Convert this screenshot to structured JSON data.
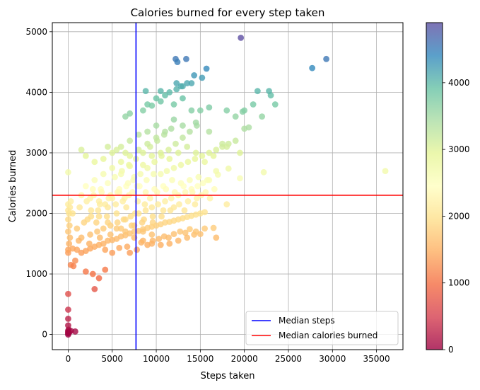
{
  "chart_data": {
    "type": "scatter",
    "title": "Calories burned for every step taken",
    "xlabel": "Steps taken",
    "ylabel": "Calories burned",
    "xlim": [
      -1800,
      38000
    ],
    "ylim": [
      -250,
      5150
    ],
    "xticks": [
      {
        "value": 0,
        "label": "0"
      },
      {
        "value": 5000,
        "label": "5000"
      },
      {
        "value": 10000,
        "label": "10000"
      },
      {
        "value": 15000,
        "label": "15000"
      },
      {
        "value": 20000,
        "label": "20000"
      },
      {
        "value": 25000,
        "label": "25000"
      },
      {
        "value": 30000,
        "label": "30000"
      },
      {
        "value": 35000,
        "label": "35000"
      }
    ],
    "yticks": [
      {
        "value": 0,
        "label": "0"
      },
      {
        "value": 1000,
        "label": "1000"
      },
      {
        "value": 2000,
        "label": "2000"
      },
      {
        "value": 3000,
        "label": "3000"
      },
      {
        "value": 4000,
        "label": "4000"
      },
      {
        "value": 5000,
        "label": "5000"
      }
    ],
    "grid": true,
    "colormap": "Spectral",
    "colormap_stops": [
      "#9e0142",
      "#d53e4f",
      "#f46d43",
      "#fdae61",
      "#fee08b",
      "#ffffbf",
      "#e6f598",
      "#abdda4",
      "#66c2a5",
      "#3288bd",
      "#5e4fa2"
    ],
    "colorbar": {
      "min": 0,
      "max": 4900,
      "ticks": [
        {
          "value": 0,
          "label": "0"
        },
        {
          "value": 1000,
          "label": "1000"
        },
        {
          "value": 2000,
          "label": "2000"
        },
        {
          "value": 3000,
          "label": "3000"
        },
        {
          "value": 4000,
          "label": "4000"
        }
      ]
    },
    "reference_lines": [
      {
        "orientation": "vertical",
        "value": 7700,
        "label": "Median steps",
        "color": "#0000ff"
      },
      {
        "orientation": "horizontal",
        "value": 2300,
        "label": "Median calories burned",
        "color": "#ff0000"
      }
    ],
    "legend_position": "lower right",
    "points": [
      [
        0,
        0
      ],
      [
        0,
        20
      ],
      [
        0,
        40
      ],
      [
        0,
        60
      ],
      [
        50,
        80
      ],
      [
        100,
        30
      ],
      [
        300,
        60
      ],
      [
        800,
        50
      ],
      [
        0,
        150
      ],
      [
        0,
        260
      ],
      [
        0,
        410
      ],
      [
        0,
        670
      ],
      [
        300,
        1150
      ],
      [
        600,
        1130
      ],
      [
        800,
        1220
      ],
      [
        2000,
        1040
      ],
      [
        2800,
        1000
      ],
      [
        3000,
        750
      ],
      [
        3500,
        930
      ],
      [
        4200,
        1070
      ],
      [
        0,
        1350
      ],
      [
        0,
        1400
      ],
      [
        100,
        1500
      ],
      [
        200,
        1600
      ],
      [
        0,
        1700
      ],
      [
        150,
        1800
      ],
      [
        0,
        1900
      ],
      [
        100,
        2000
      ],
      [
        0,
        2050
      ],
      [
        200,
        2100
      ],
      [
        0,
        2150
      ],
      [
        300,
        2200
      ],
      [
        0,
        2680
      ],
      [
        500,
        1420
      ],
      [
        1000,
        1400
      ],
      [
        1500,
        1350
      ],
      [
        2000,
        1380
      ],
      [
        2500,
        1420
      ],
      [
        3000,
        1450
      ],
      [
        3500,
        1480
      ],
      [
        4000,
        1500
      ],
      [
        4500,
        1550
      ],
      [
        5000,
        1560
      ],
      [
        5500,
        1580
      ],
      [
        6000,
        1620
      ],
      [
        6500,
        1640
      ],
      [
        7000,
        1670
      ],
      [
        7500,
        1700
      ],
      [
        8000,
        1710
      ],
      [
        8500,
        1740
      ],
      [
        9000,
        1760
      ],
      [
        9500,
        1780
      ],
      [
        10000,
        1800
      ],
      [
        10500,
        1820
      ],
      [
        11000,
        1850
      ],
      [
        11500,
        1860
      ],
      [
        12000,
        1880
      ],
      [
        12500,
        1900
      ],
      [
        13000,
        1920
      ],
      [
        13500,
        1940
      ],
      [
        14000,
        1960
      ],
      [
        14500,
        1980
      ],
      [
        15000,
        2000
      ],
      [
        15500,
        2020
      ],
      [
        4200,
        1400
      ],
      [
        5000,
        1350
      ],
      [
        5800,
        1430
      ],
      [
        6700,
        1450
      ],
      [
        7000,
        1350
      ],
      [
        7800,
        1400
      ],
      [
        8300,
        1520
      ],
      [
        9000,
        1480
      ],
      [
        9600,
        1550
      ],
      [
        10300,
        1580
      ],
      [
        10900,
        1620
      ],
      [
        11400,
        1600
      ],
      [
        12000,
        1660
      ],
      [
        12700,
        1700
      ],
      [
        13300,
        1680
      ],
      [
        13800,
        1740
      ],
      [
        14300,
        1650
      ],
      [
        15000,
        1660
      ],
      [
        16500,
        1760
      ],
      [
        1500,
        1600
      ],
      [
        2500,
        1650
      ],
      [
        3300,
        1700
      ],
      [
        4000,
        1750
      ],
      [
        4800,
        1800
      ],
      [
        5600,
        1850
      ],
      [
        6300,
        1900
      ],
      [
        7100,
        1950
      ],
      [
        8000,
        2000
      ],
      [
        8800,
        2050
      ],
      [
        9500,
        2100
      ],
      [
        10200,
        2150
      ],
      [
        11000,
        2200
      ],
      [
        11700,
        2250
      ],
      [
        12500,
        2300
      ],
      [
        13300,
        2350
      ],
      [
        14000,
        2400
      ],
      [
        14700,
        2450
      ],
      [
        15300,
        2500
      ],
      [
        16000,
        2550
      ],
      [
        1000,
        1750
      ],
      [
        1800,
        1850
      ],
      [
        2600,
        1950
      ],
      [
        3400,
        2050
      ],
      [
        4200,
        2150
      ],
      [
        5000,
        2250
      ],
      [
        5800,
        2350
      ],
      [
        6600,
        2450
      ],
      [
        7400,
        2550
      ],
      [
        8200,
        2650
      ],
      [
        9000,
        2750
      ],
      [
        9800,
        2850
      ],
      [
        10600,
        2950
      ],
      [
        11400,
        3050
      ],
      [
        12200,
        3150
      ],
      [
        13000,
        3250
      ],
      [
        13800,
        3350
      ],
      [
        14600,
        3450
      ],
      [
        500,
        2000
      ],
      [
        1300,
        2100
      ],
      [
        2100,
        2200
      ],
      [
        2900,
        2300
      ],
      [
        3700,
        2400
      ],
      [
        4500,
        2500
      ],
      [
        5300,
        2600
      ],
      [
        6100,
        2700
      ],
      [
        6900,
        2800
      ],
      [
        7700,
        2900
      ],
      [
        8500,
        3000
      ],
      [
        9300,
        3100
      ],
      [
        10100,
        3200
      ],
      [
        10900,
        3300
      ],
      [
        11700,
        3400
      ],
      [
        2000,
        2450
      ],
      [
        3000,
        2550
      ],
      [
        4000,
        2650
      ],
      [
        5000,
        2750
      ],
      [
        6000,
        2850
      ],
      [
        7000,
        2950
      ],
      [
        8000,
        3050
      ],
      [
        9000,
        3150
      ],
      [
        10000,
        3250
      ],
      [
        11000,
        3350
      ],
      [
        1500,
        2300
      ],
      [
        2500,
        2250
      ],
      [
        3500,
        2200
      ],
      [
        4500,
        2100
      ],
      [
        5500,
        2000
      ],
      [
        6500,
        1900
      ],
      [
        7500,
        1800
      ],
      [
        8500,
        1700
      ],
      [
        9500,
        1650
      ],
      [
        2200,
        1900
      ],
      [
        3200,
        1850
      ],
      [
        4400,
        1950
      ],
      [
        5400,
        2150
      ],
      [
        6400,
        2250
      ],
      [
        7300,
        2350
      ],
      [
        8100,
        2450
      ],
      [
        8900,
        2550
      ],
      [
        9700,
        2650
      ],
      [
        10500,
        2650
      ],
      [
        11200,
        2700
      ],
      [
        12000,
        2750
      ],
      [
        12800,
        2800
      ],
      [
        13600,
        2850
      ],
      [
        14400,
        2900
      ],
      [
        15200,
        2950
      ],
      [
        16000,
        3000
      ],
      [
        16800,
        3050
      ],
      [
        17500,
        3100
      ],
      [
        18200,
        3150
      ],
      [
        19000,
        3200
      ],
      [
        6000,
        3100
      ],
      [
        7000,
        3200
      ],
      [
        8000,
        3300
      ],
      [
        9000,
        3350
      ],
      [
        10000,
        3450
      ],
      [
        12000,
        3550
      ],
      [
        13000,
        3450
      ],
      [
        14500,
        3500
      ],
      [
        16000,
        3350
      ],
      [
        18000,
        3100
      ],
      [
        19500,
        3000
      ],
      [
        20000,
        3400
      ],
      [
        20500,
        3420
      ],
      [
        19800,
        3680
      ],
      [
        6500,
        3600
      ],
      [
        7000,
        3650
      ],
      [
        8500,
        3700
      ],
      [
        9000,
        3800
      ],
      [
        9500,
        3780
      ],
      [
        10000,
        3900
      ],
      [
        10500,
        3850
      ],
      [
        11000,
        3950
      ],
      [
        12000,
        3800
      ],
      [
        13000,
        3900
      ],
      [
        14000,
        3700
      ],
      [
        15000,
        3700
      ],
      [
        16000,
        3750
      ],
      [
        18000,
        3700
      ],
      [
        19000,
        3600
      ],
      [
        20000,
        3700
      ],
      [
        21000,
        3800
      ],
      [
        22000,
        3600
      ],
      [
        23000,
        3950
      ],
      [
        23500,
        3800
      ],
      [
        21500,
        4020
      ],
      [
        22800,
        4020
      ],
      [
        8800,
        4020
      ],
      [
        10500,
        4020
      ],
      [
        11500,
        4000
      ],
      [
        12300,
        4050
      ],
      [
        12800,
        4100
      ],
      [
        13500,
        4150
      ],
      [
        14000,
        4150
      ],
      [
        12300,
        4150
      ],
      [
        13000,
        4100
      ],
      [
        12200,
        4550
      ],
      [
        12400,
        4500
      ],
      [
        13400,
        4550
      ],
      [
        14300,
        4280
      ],
      [
        15200,
        4240
      ],
      [
        15700,
        4390
      ],
      [
        27700,
        4400
      ],
      [
        29300,
        4550
      ],
      [
        19600,
        4900
      ],
      [
        36000,
        2700
      ],
      [
        22200,
        2680
      ],
      [
        19500,
        2580
      ],
      [
        18200,
        2740
      ],
      [
        17000,
        2640
      ],
      [
        16800,
        1600
      ],
      [
        18000,
        2150
      ],
      [
        4000,
        2900
      ],
      [
        5000,
        3000
      ],
      [
        6000,
        2650
      ],
      [
        7000,
        2780
      ],
      [
        3000,
        2850
      ],
      [
        2000,
        2950
      ],
      [
        1500,
        3050
      ],
      [
        4500,
        3100
      ],
      [
        5500,
        3050
      ],
      [
        6500,
        3000
      ],
      [
        7500,
        2600
      ],
      [
        8500,
        2800
      ],
      [
        9500,
        2950
      ],
      [
        10500,
        3000
      ],
      [
        11500,
        2900
      ],
      [
        12500,
        3000
      ],
      [
        13500,
        3100
      ],
      [
        14500,
        3000
      ],
      [
        15500,
        2850
      ],
      [
        16500,
        2950
      ],
      [
        17500,
        3150
      ],
      [
        2800,
        2400
      ],
      [
        3800,
        2350
      ],
      [
        4800,
        2300
      ],
      [
        5800,
        2400
      ],
      [
        6800,
        2500
      ],
      [
        7800,
        2450
      ],
      [
        8800,
        2350
      ],
      [
        9800,
        2400
      ],
      [
        10800,
        2450
      ],
      [
        11800,
        2550
      ],
      [
        12800,
        2500
      ],
      [
        13800,
        2550
      ],
      [
        14800,
        2600
      ],
      [
        15800,
        2550
      ],
      [
        16800,
        2700
      ],
      [
        3500,
        1950
      ],
      [
        4500,
        1850
      ],
      [
        5500,
        1750
      ],
      [
        6500,
        1700
      ],
      [
        7500,
        1600
      ],
      [
        8500,
        1550
      ],
      [
        9500,
        1500
      ],
      [
        10500,
        1480
      ],
      [
        11500,
        1500
      ],
      [
        12500,
        1550
      ],
      [
        13500,
        1600
      ],
      [
        14500,
        1700
      ],
      [
        15500,
        1750
      ],
      [
        2600,
        2050
      ],
      [
        3600,
        2150
      ],
      [
        4600,
        2250
      ],
      [
        5600,
        2350
      ],
      [
        6600,
        2100
      ],
      [
        7600,
        2000
      ],
      [
        8600,
        1900
      ],
      [
        9600,
        1850
      ],
      [
        10600,
        1950
      ],
      [
        11600,
        2050
      ],
      [
        12600,
        2150
      ],
      [
        13600,
        2200
      ],
      [
        14600,
        2250
      ],
      [
        15600,
        2350
      ],
      [
        16600,
        2400
      ],
      [
        1200,
        1550
      ],
      [
        2400,
        1500
      ],
      [
        3600,
        1600
      ],
      [
        4800,
        1650
      ],
      [
        6000,
        1750
      ],
      [
        7200,
        1800
      ],
      [
        8400,
        1850
      ],
      [
        9600,
        1950
      ],
      [
        10800,
        2050
      ],
      [
        12000,
        2100
      ],
      [
        13200,
        2050
      ],
      [
        14400,
        2150
      ],
      [
        6200,
        2200
      ],
      [
        6900,
        2300
      ],
      [
        7900,
        2200
      ],
      [
        8700,
        2150
      ],
      [
        9300,
        2250
      ],
      [
        10100,
        2350
      ],
      [
        11100,
        2400
      ],
      [
        12100,
        2350
      ],
      [
        13100,
        2450
      ],
      [
        14100,
        2350
      ],
      [
        15100,
        2300
      ],
      [
        16100,
        2250
      ]
    ]
  }
}
